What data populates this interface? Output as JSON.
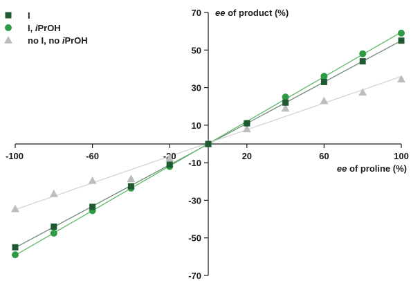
{
  "chart_data": {
    "type": "scatter",
    "x_axis": {
      "label_italic": "ee",
      "label_rest": " of proline (%)",
      "range": [
        -100,
        100
      ],
      "ticks": [
        -100,
        -60,
        -20,
        20,
        60,
        100
      ]
    },
    "y_axis": {
      "label_italic": "ee",
      "label_rest": " of product (%)",
      "range": [
        -70,
        70
      ],
      "ticks": [
        70,
        50,
        30,
        10,
        -10,
        -30,
        -50,
        -70
      ]
    },
    "legend": {
      "placement": "top-left",
      "entries": [
        {
          "series": 0,
          "parts": [
            {
              "text": "I",
              "italic": false
            }
          ]
        },
        {
          "series": 1,
          "parts": [
            {
              "text": "I, ",
              "italic": false
            },
            {
              "text": "i",
              "italic": true
            },
            {
              "text": "PrOH",
              "italic": false
            }
          ]
        },
        {
          "series": 2,
          "parts": [
            {
              "text": "no I, no ",
              "italic": false
            },
            {
              "text": "i",
              "italic": true
            },
            {
              "text": "PrOH",
              "italic": false
            }
          ]
        }
      ]
    },
    "series": [
      {
        "marker": "square",
        "color": "#1f5a32",
        "line_color": "#6e8a78",
        "x": [
          -100,
          -80,
          -60,
          -40,
          -20,
          0,
          20,
          40,
          60,
          80,
          100
        ],
        "y": [
          -55,
          -44,
          -33.5,
          -22.5,
          -11,
          0,
          11,
          22,
          33,
          44,
          55
        ]
      },
      {
        "marker": "circle",
        "color": "#2e9a44",
        "line_color": "#5cb86a",
        "x": [
          -100,
          -80,
          -60,
          -40,
          -20,
          0,
          20,
          40,
          60,
          80,
          100
        ],
        "y": [
          -59,
          -47.5,
          -35.5,
          -23.5,
          -12,
          0,
          11,
          25,
          36,
          48,
          59
        ]
      },
      {
        "marker": "triangle",
        "color": "#bdbdbd",
        "line_color": "#d4d4d4",
        "x": [
          -100,
          -80,
          -60,
          -40,
          -20,
          0,
          20,
          40,
          60,
          80,
          100
        ],
        "y": [
          -34.5,
          -26.5,
          -19.5,
          -18.5,
          -7.5,
          0,
          8,
          19,
          23,
          27.5,
          34.5
        ]
      }
    ]
  }
}
